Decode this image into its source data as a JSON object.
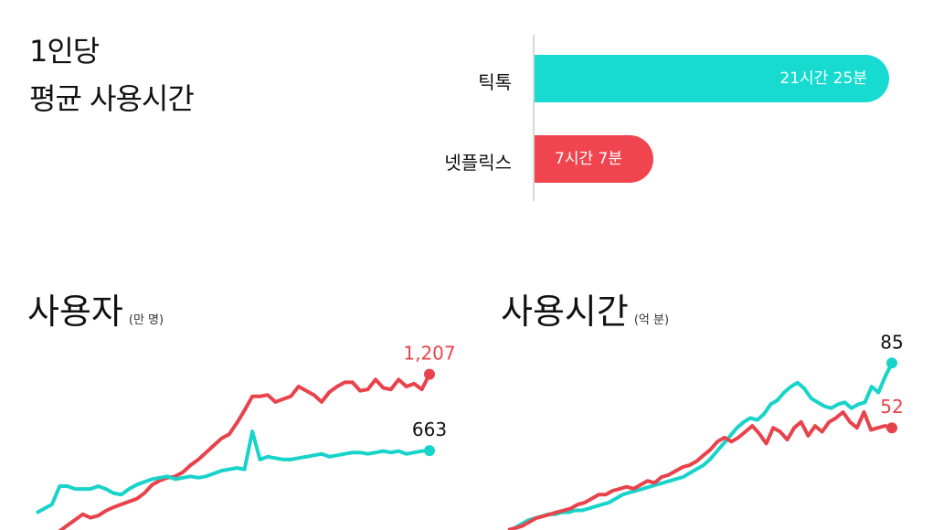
{
  "header": {
    "title_line1": "1인당",
    "title_line2": "평균 사용시간"
  },
  "avg_usage": {
    "bars": [
      {
        "label": "틱톡",
        "value_label": "21시간 25분",
        "minutes": 1285,
        "color": "#17dbd1"
      },
      {
        "label": "넷플릭스",
        "value_label": "7시간 7분",
        "minutes": 427,
        "color": "#f0444f"
      }
    ]
  },
  "colors": {
    "tiktok": "#17d3c9",
    "netflix": "#e8424b",
    "axis": "#d8d8d8"
  },
  "chart_data": [
    {
      "type": "bar",
      "title": "1인당 평균 사용시간",
      "categories": [
        "틱톡",
        "넷플릭스"
      ],
      "values": [
        1285,
        427
      ],
      "value_labels": [
        "21시간 25분",
        "7시간 7분"
      ]
    },
    {
      "type": "line",
      "title": "사용자",
      "unit": "(만 명)",
      "ylim": [
        0,
        1400
      ],
      "series": [
        {
          "name": "넷플릭스",
          "color": "#e8424b",
          "end_label": "1,207",
          "values": [
            20,
            55,
            65,
            90,
            130,
            170,
            210,
            185,
            200,
            235,
            260,
            280,
            300,
            320,
            360,
            420,
            450,
            470,
            480,
            510,
            560,
            600,
            650,
            700,
            750,
            780,
            860,
            950,
            1050,
            1050,
            1060,
            1010,
            1030,
            1050,
            1120,
            1090,
            1060,
            1010,
            1080,
            1120,
            1150,
            1150,
            1090,
            1100,
            1170,
            1110,
            1100,
            1170,
            1120,
            1140,
            1100,
            1207
          ]
        },
        {
          "name": "틱톡",
          "color": "#17d3c9",
          "end_label": "663",
          "values": [
            220,
            250,
            280,
            410,
            410,
            390,
            390,
            390,
            410,
            390,
            360,
            350,
            390,
            420,
            440,
            460,
            470,
            480,
            460,
            470,
            480,
            470,
            480,
            500,
            520,
            530,
            540,
            530,
            800,
            600,
            620,
            610,
            600,
            600,
            610,
            620,
            630,
            640,
            620,
            630,
            640,
            650,
            650,
            640,
            650,
            660,
            650,
            660,
            640,
            650,
            660,
            663
          ]
        }
      ]
    },
    {
      "type": "line",
      "title": "사용시간",
      "unit": "(억 분)",
      "ylim": [
        0,
        100
      ],
      "series": [
        {
          "name": "틱톡",
          "color": "#17d3c9",
          "end_label": "85",
          "values": [
            0,
            1,
            3,
            5,
            6,
            7,
            8,
            8,
            9,
            9,
            10,
            10,
            11,
            12,
            13,
            14,
            16,
            18,
            19,
            20,
            21,
            22,
            23,
            24,
            25,
            26,
            27,
            29,
            31,
            33,
            36,
            40,
            44,
            48,
            52,
            55,
            57,
            56,
            59,
            64,
            66,
            70,
            73,
            75,
            72,
            67,
            65,
            63,
            62,
            64,
            65,
            62,
            64,
            65,
            73,
            70,
            78,
            85
          ]
        },
        {
          "name": "넷플릭스",
          "color": "#e8424b",
          "end_label": "52",
          "values": [
            0,
            1,
            2,
            4,
            6,
            7,
            8,
            9,
            10,
            11,
            13,
            14,
            16,
            18,
            18,
            20,
            21,
            22,
            21,
            23,
            25,
            24,
            27,
            28,
            30,
            32,
            33,
            35,
            38,
            41,
            45,
            47,
            45,
            47,
            50,
            53,
            49,
            44,
            52,
            50,
            46,
            52,
            55,
            48,
            53,
            50,
            55,
            57,
            60,
            55,
            52,
            60,
            51,
            52,
            53,
            52
          ]
        }
      ]
    }
  ]
}
